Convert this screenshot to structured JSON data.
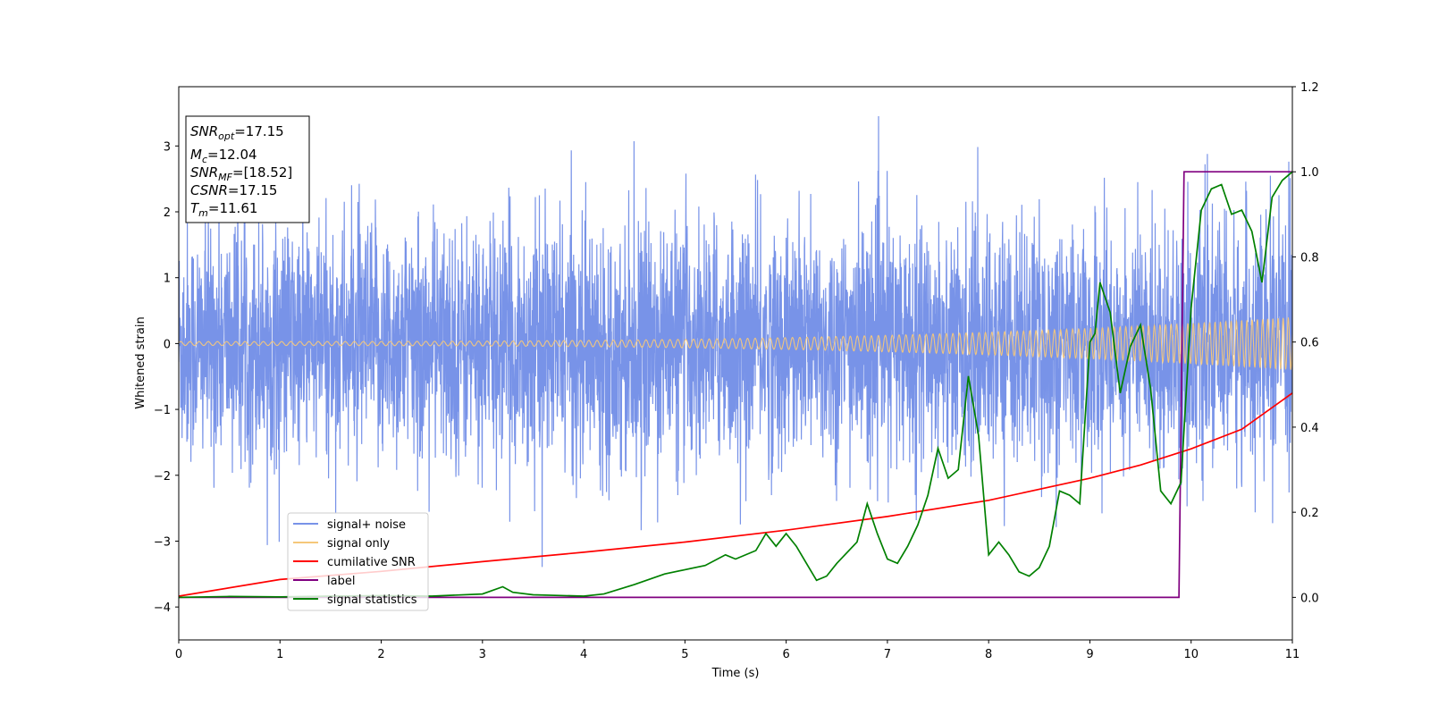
{
  "chart_data": {
    "type": "line",
    "xlabel": "Time (s)",
    "ylabel": "Whitened strain",
    "xlim": [
      0,
      11
    ],
    "ylim": [
      -4.5,
      3.9
    ],
    "y2lim": [
      -0.1,
      1.2
    ],
    "xticks": [
      0,
      1,
      2,
      3,
      4,
      5,
      6,
      7,
      8,
      9,
      10,
      11
    ],
    "yticks": [
      -4,
      -3,
      -2,
      -1,
      0,
      1,
      2,
      3
    ],
    "y2ticks": [
      0.0,
      0.2,
      0.4,
      0.6,
      0.8,
      1.0,
      1.2
    ],
    "y2tick_labels": [
      "0.0",
      "0.2",
      "0.4",
      "0.6",
      "0.8",
      "1.0",
      "1.2"
    ],
    "info_box": [
      {
        "base": "SNR",
        "sub": "opt",
        "rest": "=17.15"
      },
      {
        "base": "M",
        "sub": "c",
        "rest": "=12.04"
      },
      {
        "base": "SNR",
        "sub": "MF",
        "rest": "=[18.52]"
      },
      {
        "base": "CSNR",
        "sub": "",
        "rest": "=17.15"
      },
      {
        "base": "T",
        "sub": "m",
        "rest": "=11.61"
      }
    ],
    "legend": {
      "location": "lower-left",
      "entries": [
        {
          "label": "signal+ noise",
          "color": "#7893e8"
        },
        {
          "label": "signal only",
          "color": "#f5c77a"
        },
        {
          "label": "cumilative SNR",
          "color": "#ff0000"
        },
        {
          "label": "label",
          "color": "#800080"
        },
        {
          "label": "signal statistics",
          "color": "#008000"
        }
      ]
    },
    "series": [
      {
        "name": "signal+ noise",
        "axis": "left",
        "color": "#7893e8",
        "description": "whitened noisy strain, amplitude ~1 sigma with peaks up to 3.5",
        "noise_std": 0.95,
        "peak_max": 3.5,
        "peak_min": -3.5
      },
      {
        "name": "signal only",
        "axis": "left",
        "color": "#f5c77a",
        "description": "chirp growing in amplitude",
        "amplitude_start": 0.03,
        "amplitude_end": 0.4
      },
      {
        "name": "cumilative SNR",
        "axis": "right",
        "x": [
          0,
          1,
          2,
          3,
          4,
          5,
          6,
          7,
          8,
          9,
          9.5,
          10,
          10.5,
          11
        ],
        "y": [
          0.003,
          0.042,
          0.061,
          0.084,
          0.106,
          0.13,
          0.158,
          0.19,
          0.228,
          0.28,
          0.311,
          0.349,
          0.395,
          0.48
        ],
        "color": "#ff0000"
      },
      {
        "name": "label",
        "axis": "right",
        "x": [
          0,
          9.88,
          9.93,
          11
        ],
        "y": [
          0,
          0,
          1,
          1
        ],
        "color": "#800080"
      },
      {
        "name": "signal statistics",
        "axis": "right",
        "x": [
          0,
          0.5,
          1,
          1.5,
          2,
          2.5,
          3,
          3.2,
          3.3,
          3.5,
          4,
          4.2,
          4.5,
          4.8,
          5,
          5.2,
          5.4,
          5.5,
          5.7,
          5.8,
          5.9,
          6,
          6.1,
          6.2,
          6.3,
          6.4,
          6.5,
          6.7,
          6.8,
          6.9,
          7,
          7.1,
          7.2,
          7.3,
          7.4,
          7.5,
          7.6,
          7.7,
          7.8,
          7.9,
          8,
          8.1,
          8.2,
          8.3,
          8.4,
          8.5,
          8.6,
          8.7,
          8.8,
          8.9,
          9,
          9.05,
          9.1,
          9.2,
          9.3,
          9.4,
          9.5,
          9.6,
          9.7,
          9.8,
          9.9,
          10,
          10.1,
          10.2,
          10.3,
          10.4,
          10.5,
          10.6,
          10.7,
          10.8,
          10.9,
          11
        ],
        "y": [
          0,
          0.002,
          0.001,
          0.003,
          0.004,
          0.003,
          0.008,
          0.025,
          0.012,
          0.006,
          0.003,
          0.008,
          0.03,
          0.055,
          0.065,
          0.075,
          0.1,
          0.09,
          0.11,
          0.15,
          0.12,
          0.15,
          0.12,
          0.08,
          0.04,
          0.05,
          0.08,
          0.13,
          0.22,
          0.15,
          0.09,
          0.08,
          0.12,
          0.17,
          0.24,
          0.35,
          0.28,
          0.3,
          0.52,
          0.38,
          0.1,
          0.13,
          0.1,
          0.06,
          0.05,
          0.07,
          0.12,
          0.25,
          0.24,
          0.22,
          0.6,
          0.62,
          0.74,
          0.67,
          0.48,
          0.59,
          0.64,
          0.49,
          0.25,
          0.22,
          0.27,
          0.68,
          0.91,
          0.96,
          0.97,
          0.9,
          0.91,
          0.86,
          0.74,
          0.94,
          0.98,
          1.0
        ],
        "color": "#008000"
      }
    ]
  }
}
